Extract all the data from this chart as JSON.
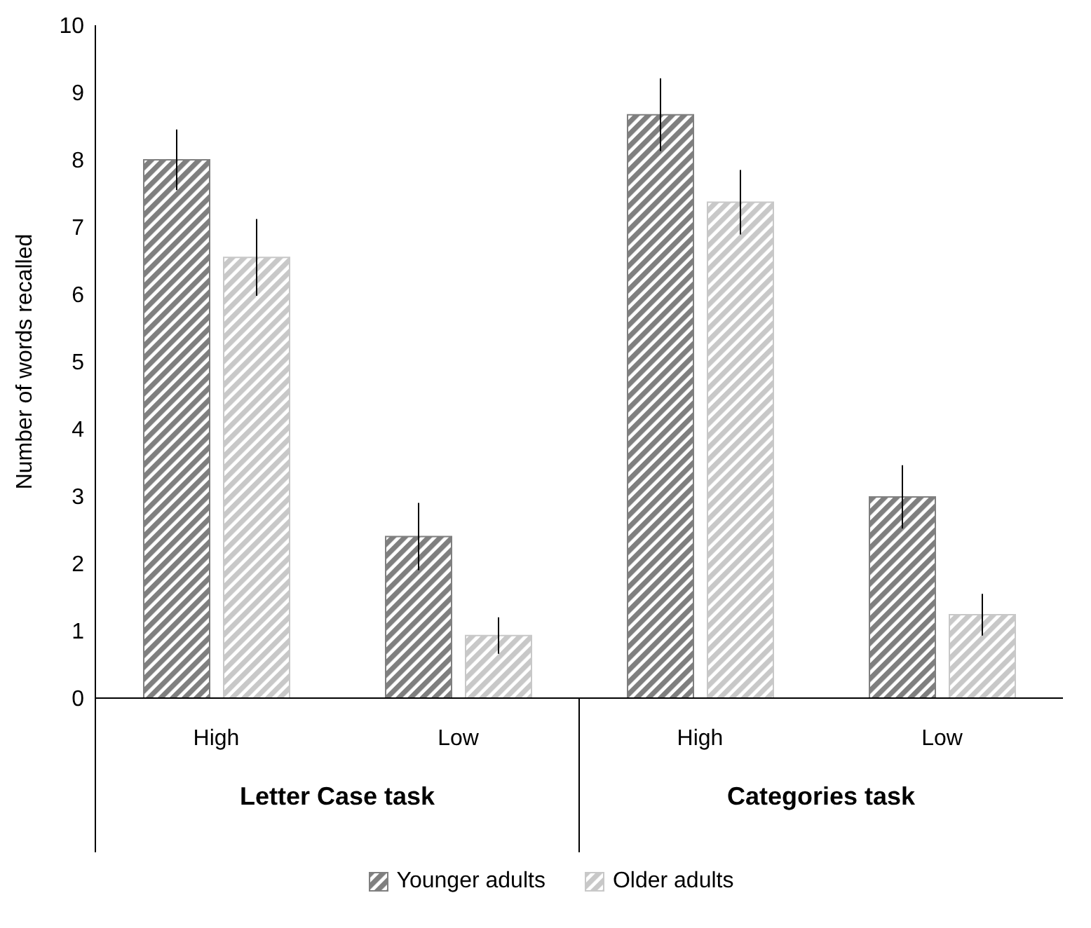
{
  "chart_data": {
    "type": "bar",
    "ylabel": "Number of words recalled",
    "categories": [
      "High",
      "Low",
      "High",
      "Low"
    ],
    "series": [
      {
        "name": "Younger adults",
        "color": "#7f7f7f",
        "values": [
          8.0,
          2.4,
          8.67,
          2.99
        ],
        "errors": [
          0.45,
          0.5,
          0.54,
          0.47
        ]
      },
      {
        "name": "Older adults",
        "color": "#c8c8c8",
        "values": [
          6.55,
          0.93,
          7.37,
          1.24
        ],
        "errors": [
          0.57,
          0.27,
          0.48,
          0.31
        ]
      }
    ],
    "annotations": [
      "Letter Case task",
      "Categories task"
    ],
    "ylim": [
      0,
      10
    ],
    "yticks": [
      0,
      1,
      2,
      3,
      4,
      5,
      6,
      7,
      8,
      9,
      10
    ],
    "grid": false,
    "legend": "bottom"
  }
}
